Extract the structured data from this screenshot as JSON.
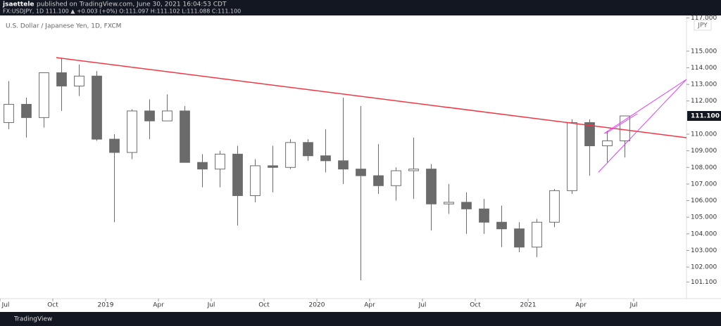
{
  "header": {
    "author": "jsaettele",
    "published": "published on TradingView.com, June 30, 2021 16:04:53 CDT",
    "symbol_line": "FX:USDJPY, 1D  111.100 ▲ +0.003 (+0%)  O:111.097  H:111.102  L:111.088  C:111.100"
  },
  "footer": {
    "brand": "TradingView"
  },
  "chart_data": {
    "type": "candlestick",
    "title": "U.S. Dollar / Japanese Yen, 1D, FXCM",
    "currency": "JPY",
    "last_price_label": "111.100",
    "color": "#6b6b6b",
    "x": [
      "2018-07",
      "2018-08",
      "2018-09",
      "2018-10",
      "2018-11",
      "2018-12",
      "2019-01",
      "2019-02",
      "2019-03",
      "2019-04",
      "2019-05",
      "2019-06",
      "2019-07",
      "2019-08",
      "2019-09",
      "2019-10",
      "2019-11",
      "2019-12",
      "2020-01",
      "2020-02",
      "2020-03",
      "2020-04",
      "2020-05",
      "2020-06",
      "2020-07",
      "2020-08",
      "2020-09",
      "2020-10",
      "2020-11",
      "2020-12",
      "2021-01",
      "2021-02",
      "2021-03",
      "2021-04",
      "2021-05",
      "2021-06"
    ],
    "open": [
      110.7,
      111.8,
      111.0,
      113.7,
      112.9,
      113.5,
      109.7,
      108.9,
      111.4,
      110.8,
      111.4,
      108.3,
      107.9,
      108.8,
      106.3,
      108.1,
      108.0,
      109.5,
      108.7,
      108.4,
      107.9,
      107.5,
      106.9,
      107.8,
      107.9,
      105.8,
      105.9,
      105.5,
      104.7,
      104.3,
      103.2,
      104.7,
      106.6,
      110.7,
      109.3,
      109.6
    ],
    "high": [
      113.2,
      112.2,
      113.7,
      114.6,
      114.2,
      113.8,
      110.0,
      111.5,
      112.1,
      112.4,
      111.7,
      108.8,
      109.0,
      109.3,
      108.5,
      109.3,
      109.7,
      109.7,
      110.3,
      112.2,
      111.7,
      109.4,
      108.0,
      109.8,
      108.2,
      107.0,
      106.5,
      106.1,
      105.7,
      104.7,
      104.9,
      106.7,
      110.9,
      110.9,
      110.2,
      111.1
    ],
    "low": [
      110.3,
      109.8,
      110.4,
      111.4,
      112.3,
      109.6,
      104.7,
      108.5,
      109.7,
      110.8,
      108.3,
      106.8,
      106.8,
      104.5,
      105.9,
      106.5,
      107.9,
      108.4,
      107.7,
      107.0,
      101.2,
      106.4,
      106.0,
      106.1,
      104.2,
      105.2,
      104.0,
      104.0,
      103.2,
      102.9,
      102.6,
      104.4,
      106.4,
      107.5,
      108.3,
      108.6
    ],
    "close": [
      111.8,
      111.0,
      113.7,
      112.9,
      113.5,
      109.7,
      108.9,
      111.4,
      110.8,
      111.4,
      108.3,
      107.9,
      108.8,
      106.3,
      108.1,
      108.0,
      109.5,
      108.7,
      108.4,
      107.9,
      107.5,
      106.9,
      107.8,
      107.9,
      105.8,
      105.9,
      105.5,
      104.7,
      104.3,
      103.2,
      104.7,
      106.6,
      110.7,
      109.3,
      109.6,
      111.1
    ],
    "xlim": [
      "2018-07",
      "2021-10"
    ],
    "xticks": [
      {
        "value": "2018-07",
        "label": "Jul"
      },
      {
        "value": "2018-10",
        "label": "Oct"
      },
      {
        "value": "2019-01",
        "label": "2019"
      },
      {
        "value": "2019-04",
        "label": "Apr"
      },
      {
        "value": "2019-07",
        "label": "Jul"
      },
      {
        "value": "2019-10",
        "label": "Oct"
      },
      {
        "value": "2020-01",
        "label": "2020"
      },
      {
        "value": "2020-04",
        "label": "Apr"
      },
      {
        "value": "2020-07",
        "label": "Jul"
      },
      {
        "value": "2020-10",
        "label": "Oct"
      },
      {
        "value": "2021-01",
        "label": "2021"
      },
      {
        "value": "2021-04",
        "label": "Apr"
      },
      {
        "value": "2021-07",
        "label": "Jul"
      }
    ],
    "ylim": [
      100.1,
      117.15
    ],
    "yticks": [
      {
        "value": 101.1,
        "label": "101.100"
      },
      {
        "value": 102,
        "label": "102.000"
      },
      {
        "value": 103,
        "label": "103.000"
      },
      {
        "value": 104,
        "label": "104.000"
      },
      {
        "value": 105,
        "label": "105.000"
      },
      {
        "value": 106,
        "label": "106.000"
      },
      {
        "value": 107,
        "label": "107.000"
      },
      {
        "value": 108,
        "label": "108.000"
      },
      {
        "value": 109,
        "label": "109.000"
      },
      {
        "value": 110,
        "label": "110.000"
      },
      {
        "value": 112,
        "label": "112.000"
      },
      {
        "value": 113,
        "label": "113.000"
      },
      {
        "value": 114,
        "label": "114.000"
      },
      {
        "value": 115,
        "label": "115.000"
      },
      {
        "value": 117,
        "label": "117.000"
      }
    ]
  }
}
